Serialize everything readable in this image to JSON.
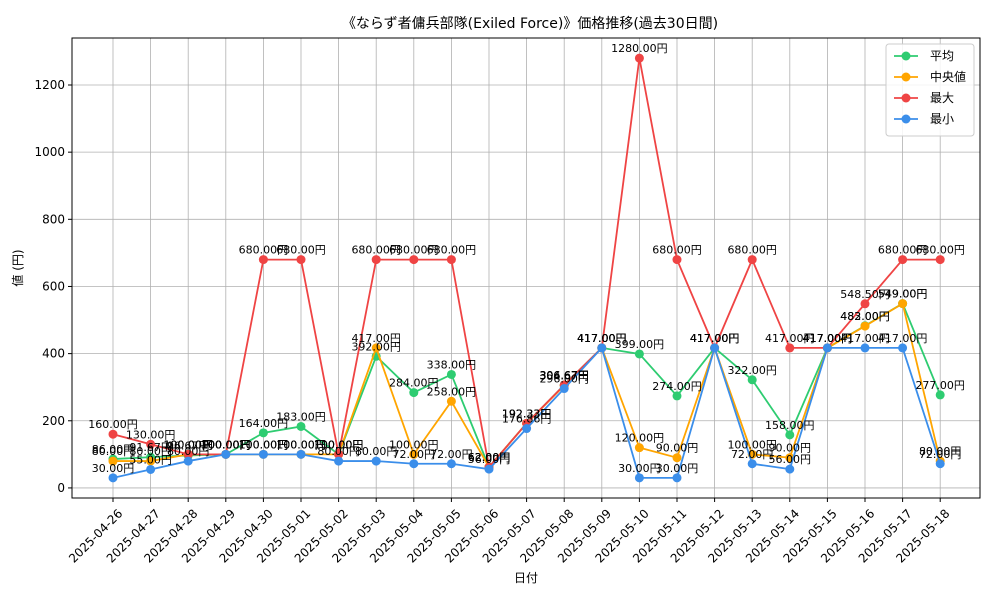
{
  "chart_data": {
    "type": "line",
    "title": "《ならず者傭兵部隊(Exiled Force)》価格推移(過去30日間)",
    "xlabel": "日付",
    "ylabel": "値 (円)",
    "ylim": [
      -30,
      1340
    ],
    "yticks": [
      0,
      200,
      400,
      600,
      800,
      1000,
      1200
    ],
    "grid": true,
    "legend_position": "top-right",
    "value_suffix": "円",
    "categories": [
      "2025-04-26",
      "2025-04-27",
      "2025-04-28",
      "2025-04-29",
      "2025-04-30",
      "2025-05-01",
      "2025-05-02",
      "2025-05-03",
      "2025-05-04",
      "2025-05-05",
      "2025-05-06",
      "2025-05-07",
      "2025-05-08",
      "2025-05-09",
      "2025-05-10",
      "2025-05-11",
      "2025-05-12",
      "2025-05-13",
      "2025-05-14",
      "2025-05-15",
      "2025-05-16",
      "2025-05-17",
      "2025-05-18"
    ],
    "series": [
      {
        "name": "平均",
        "color": "#2ecc71",
        "values": [
          86,
          91.67,
          96.67,
          100,
          164,
          183,
          100,
          392,
          284,
          338,
          62,
          192.33,
          306.67,
          417,
          399,
          274,
          417,
          322,
          158,
          417,
          483,
          549,
          277
        ]
      },
      {
        "name": "中央値",
        "color": "#ffa500",
        "values": [
          80,
          80,
          100,
          100,
          100,
          100,
          100,
          417,
          100,
          258,
          62,
          192.33,
          304.67,
          417,
          120,
          90,
          417,
          100,
          90,
          417,
          482,
          549,
          80
        ]
      },
      {
        "name": "最大",
        "color": "#ef4444",
        "values": [
          160,
          130,
          100,
          100,
          680,
          680,
          100,
          680,
          680,
          680,
          62,
          192.33,
          306.67,
          417,
          1280,
          680,
          417,
          680,
          417,
          417,
          548.5,
          680,
          680
        ]
      },
      {
        "name": "最小",
        "color": "#3b8eea",
        "values": [
          30,
          55,
          80,
          100,
          100,
          100,
          80,
          80,
          72,
          72,
          56,
          176.86,
          296,
          417,
          30,
          30,
          417,
          72,
          56,
          417,
          417,
          417,
          72
        ]
      }
    ]
  }
}
